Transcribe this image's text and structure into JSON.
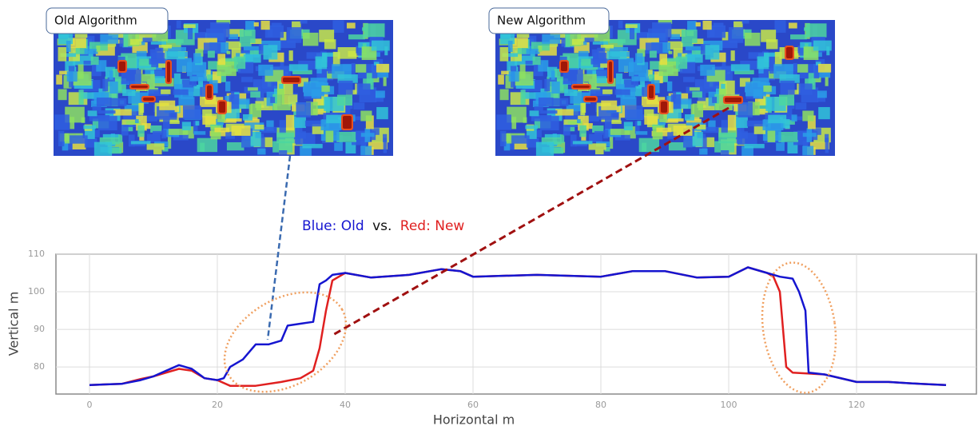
{
  "images": [
    {
      "label": "Old Algorithm"
    },
    {
      "label": "New Algorithm"
    }
  ],
  "chart_data": {
    "type": "line",
    "x_label": "Horizontal m",
    "y_label": "Vertical m",
    "legend_joiner": "vs.",
    "xlim": [
      -5.25,
      138.75
    ],
    "ylim": [
      72.8,
      110
    ],
    "xticks": [
      0,
      20,
      40,
      60,
      80,
      100,
      120
    ],
    "yticks": [
      80,
      90,
      100,
      110
    ],
    "grid": true,
    "series": [
      {
        "name": "Blue: Old",
        "color": "#1515d0",
        "x": [
          0,
          5,
          8,
          10,
          12,
          14,
          16,
          18,
          20,
          21,
          22,
          24,
          26,
          28,
          30,
          31,
          33,
          35,
          36,
          37,
          38,
          40,
          44,
          50,
          55,
          58,
          60,
          70,
          80,
          85,
          90,
          95,
          100,
          103,
          106,
          108,
          110,
          111,
          112,
          112.5,
          115,
          120,
          125,
          130,
          134
        ],
        "values": [
          75.2,
          75.5,
          76.5,
          77.5,
          79,
          80.5,
          79.5,
          77,
          76.5,
          77,
          80,
          82,
          86,
          86,
          87,
          91,
          91.5,
          92,
          102,
          103,
          104.5,
          105,
          103.8,
          104.5,
          106,
          105.5,
          104,
          104.5,
          104,
          105.5,
          105.5,
          103.8,
          104,
          106.5,
          105,
          104,
          103.5,
          100,
          95,
          78.5,
          78,
          76,
          76,
          75.5,
          75.2
        ]
      },
      {
        "name": "Red: New",
        "color": "#e02020",
        "x": [
          0,
          5,
          8,
          10,
          12,
          14,
          16,
          18,
          20,
          22,
          26,
          30,
          33,
          35,
          36,
          37,
          38,
          40,
          44,
          50,
          55,
          58,
          60,
          70,
          80,
          85,
          90,
          95,
          100,
          103,
          106,
          107,
          108,
          109,
          110,
          115,
          120,
          125,
          130,
          134
        ],
        "values": [
          75.2,
          75.5,
          76.8,
          77.5,
          78.5,
          79.5,
          79,
          77,
          76.5,
          75,
          75,
          76,
          77,
          79,
          85,
          95,
          103,
          105,
          103.8,
          104.5,
          106,
          105.5,
          104,
          104.5,
          104,
          105.5,
          105.5,
          103.8,
          104,
          106.5,
          105,
          104,
          100,
          80,
          78.5,
          78,
          76,
          76,
          75.5,
          75.2
        ]
      }
    ]
  }
}
